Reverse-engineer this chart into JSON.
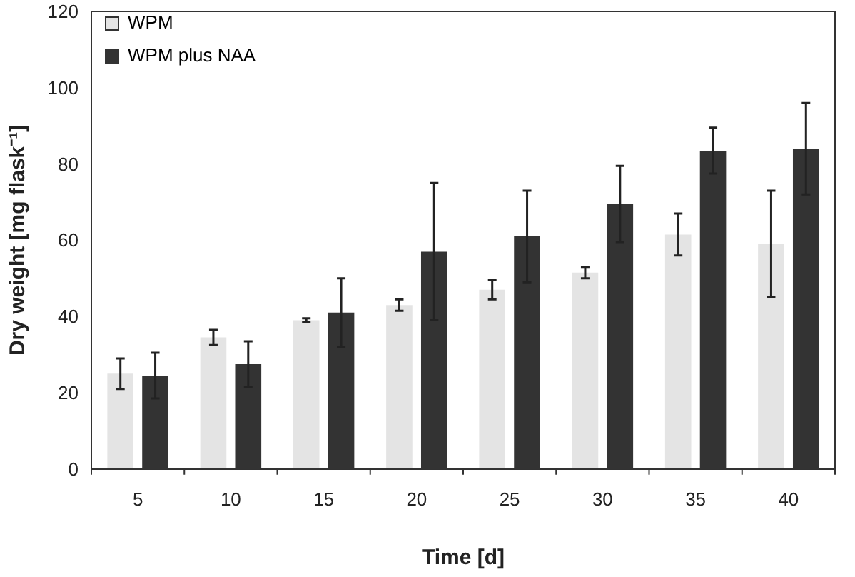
{
  "chart_data": {
    "type": "bar",
    "xlabel": "Time [d]",
    "ylabel": "Dry weight [mg flask⁻¹]",
    "categories": [
      "5",
      "10",
      "15",
      "20",
      "25",
      "30",
      "35",
      "40"
    ],
    "series": [
      {
        "name": "WPM",
        "color": "#e4e4e4",
        "values": [
          25,
          34.5,
          39,
          43,
          47,
          51.5,
          61.5,
          59
        ],
        "errors": [
          4,
          2,
          0.5,
          1.5,
          2.5,
          1.5,
          5.5,
          14
        ]
      },
      {
        "name": "WPM plus NAA",
        "color": "#333333",
        "values": [
          24.5,
          27.5,
          41,
          57,
          61,
          69.5,
          83.5,
          84
        ],
        "errors": [
          6,
          6,
          9,
          18,
          12,
          10,
          6,
          12
        ]
      }
    ],
    "ylim": [
      0,
      120
    ],
    "yticks": [
      0,
      20,
      40,
      60,
      80,
      100,
      120
    ],
    "grid": false,
    "legend": "top left"
  }
}
